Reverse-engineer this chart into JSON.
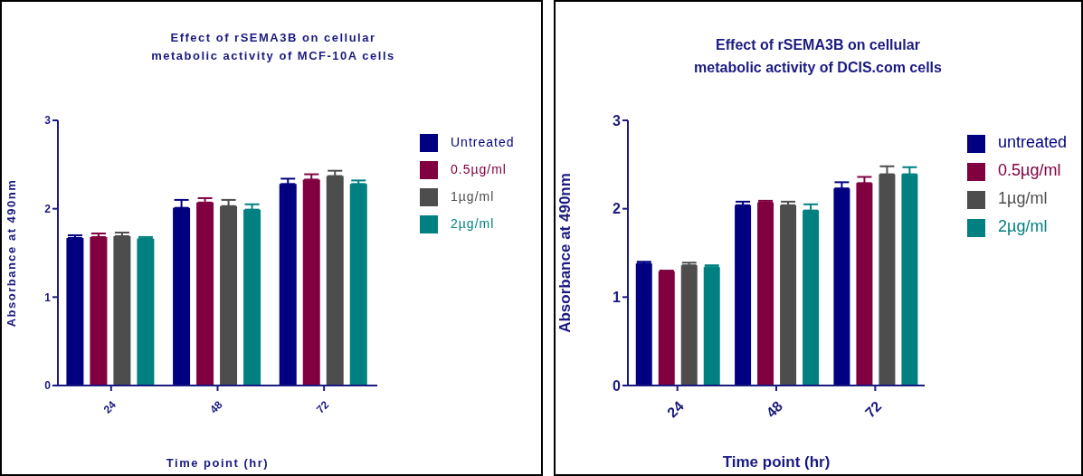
{
  "chart_data": [
    {
      "type": "bar",
      "title": "Effect of rSEMA3B on cellular\nmetabolic activity of  MCF-10A cells",
      "xlabel": "Time point (hr)",
      "ylabel": "Absorbance at 490nm",
      "categories": [
        "24",
        "48",
        "72"
      ],
      "ylim": [
        0,
        3
      ],
      "yticks": [
        0,
        1,
        2,
        3
      ],
      "grid": false,
      "legend": "right",
      "series": [
        {
          "name": "Untreated",
          "color": "#000080",
          "values": [
            1.67,
            2.01,
            2.28
          ],
          "errors": [
            0.03,
            0.09,
            0.06
          ]
        },
        {
          "name": "0.5µg/ml",
          "color": "#800040",
          "values": [
            1.68,
            2.07,
            2.33
          ],
          "errors": [
            0.04,
            0.05,
            0.06
          ]
        },
        {
          "name": "1µg/ml",
          "color": "#4d4d4d",
          "values": [
            1.69,
            2.03,
            2.37
          ],
          "errors": [
            0.04,
            0.07,
            0.06
          ]
        },
        {
          "name": "2µg/ml",
          "color": "#008080",
          "values": [
            1.66,
            1.99,
            2.28
          ],
          "errors": [
            0.02,
            0.06,
            0.04
          ]
        }
      ]
    },
    {
      "type": "bar",
      "title": "Effect of rSEMA3B on cellular\nmetabolic activity of DCIS.com cells",
      "xlabel": "Time point (hr)",
      "ylabel": "Absorbance at 490nm",
      "categories": [
        "24",
        "48",
        "72"
      ],
      "ylim": [
        0,
        3
      ],
      "yticks": [
        0,
        1,
        2,
        3
      ],
      "grid": false,
      "legend": "right",
      "series": [
        {
          "name": "untreated",
          "color": "#000080",
          "values": [
            1.38,
            2.04,
            2.23
          ],
          "errors": [
            0.02,
            0.04,
            0.07
          ]
        },
        {
          "name": "0.5µg/ml",
          "color": "#800040",
          "values": [
            1.29,
            2.07,
            2.29
          ],
          "errors": [
            0.01,
            0.02,
            0.07
          ]
        },
        {
          "name": "1µg/ml",
          "color": "#4d4d4d",
          "values": [
            1.36,
            2.04,
            2.39
          ],
          "errors": [
            0.03,
            0.04,
            0.09
          ]
        },
        {
          "name": "2µg/ml",
          "color": "#008080",
          "values": [
            1.34,
            1.98,
            2.39
          ],
          "errors": [
            0.02,
            0.07,
            0.08
          ]
        }
      ]
    }
  ]
}
